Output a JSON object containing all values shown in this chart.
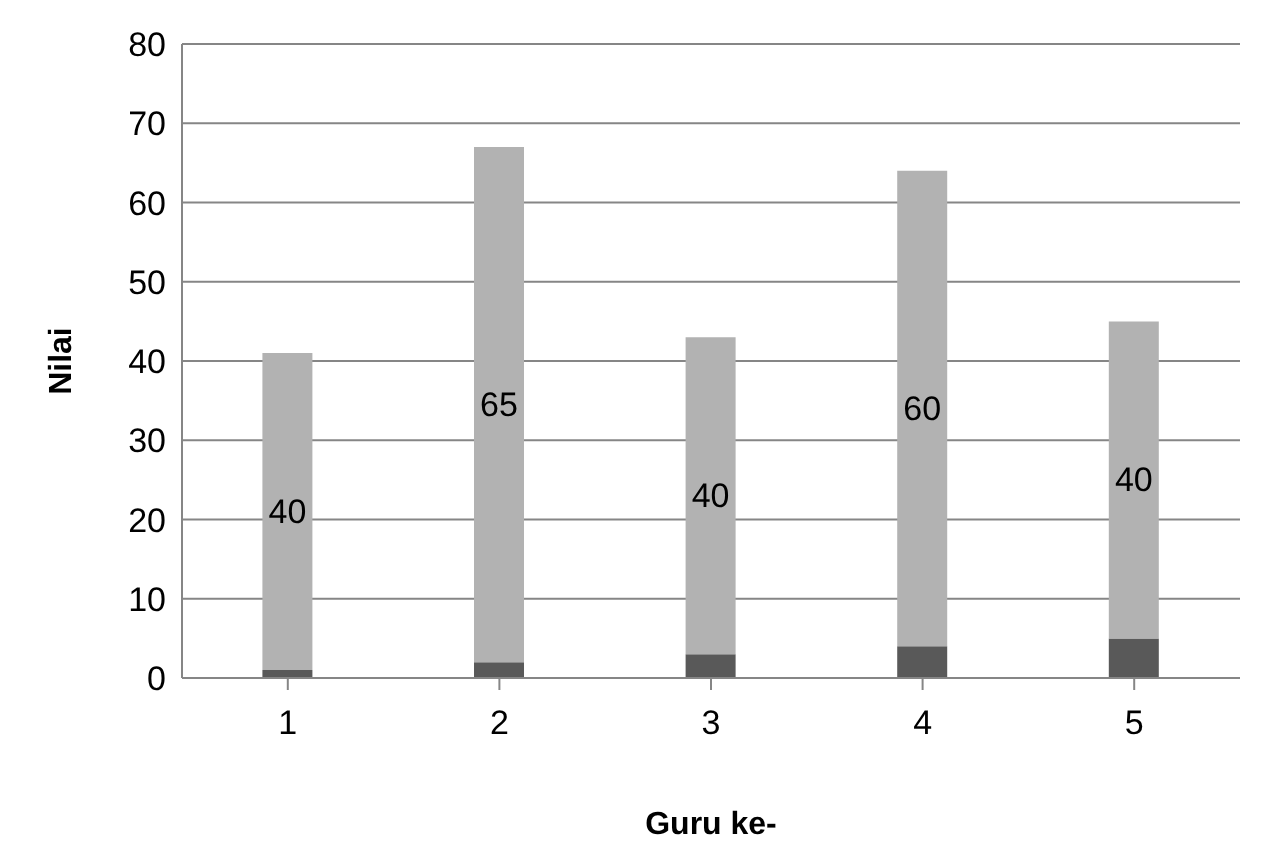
{
  "chart_data": {
    "type": "bar",
    "stacked": true,
    "xlabel": "Guru ke-",
    "ylabel": "Nilai",
    "categories": [
      "1",
      "2",
      "3",
      "4",
      "5"
    ],
    "series": [
      {
        "color": "#595959",
        "values": [
          1,
          2,
          3,
          4,
          5
        ]
      },
      {
        "color": "#b2b2b2",
        "values": [
          40,
          65,
          40,
          60,
          40
        ],
        "value_labels": [
          "40",
          "65",
          "40",
          "60",
          "40"
        ]
      }
    ],
    "ylim": [
      0,
      80
    ],
    "yticks": [
      0,
      10,
      20,
      30,
      40,
      50,
      60,
      70,
      80
    ],
    "grid": "y"
  }
}
